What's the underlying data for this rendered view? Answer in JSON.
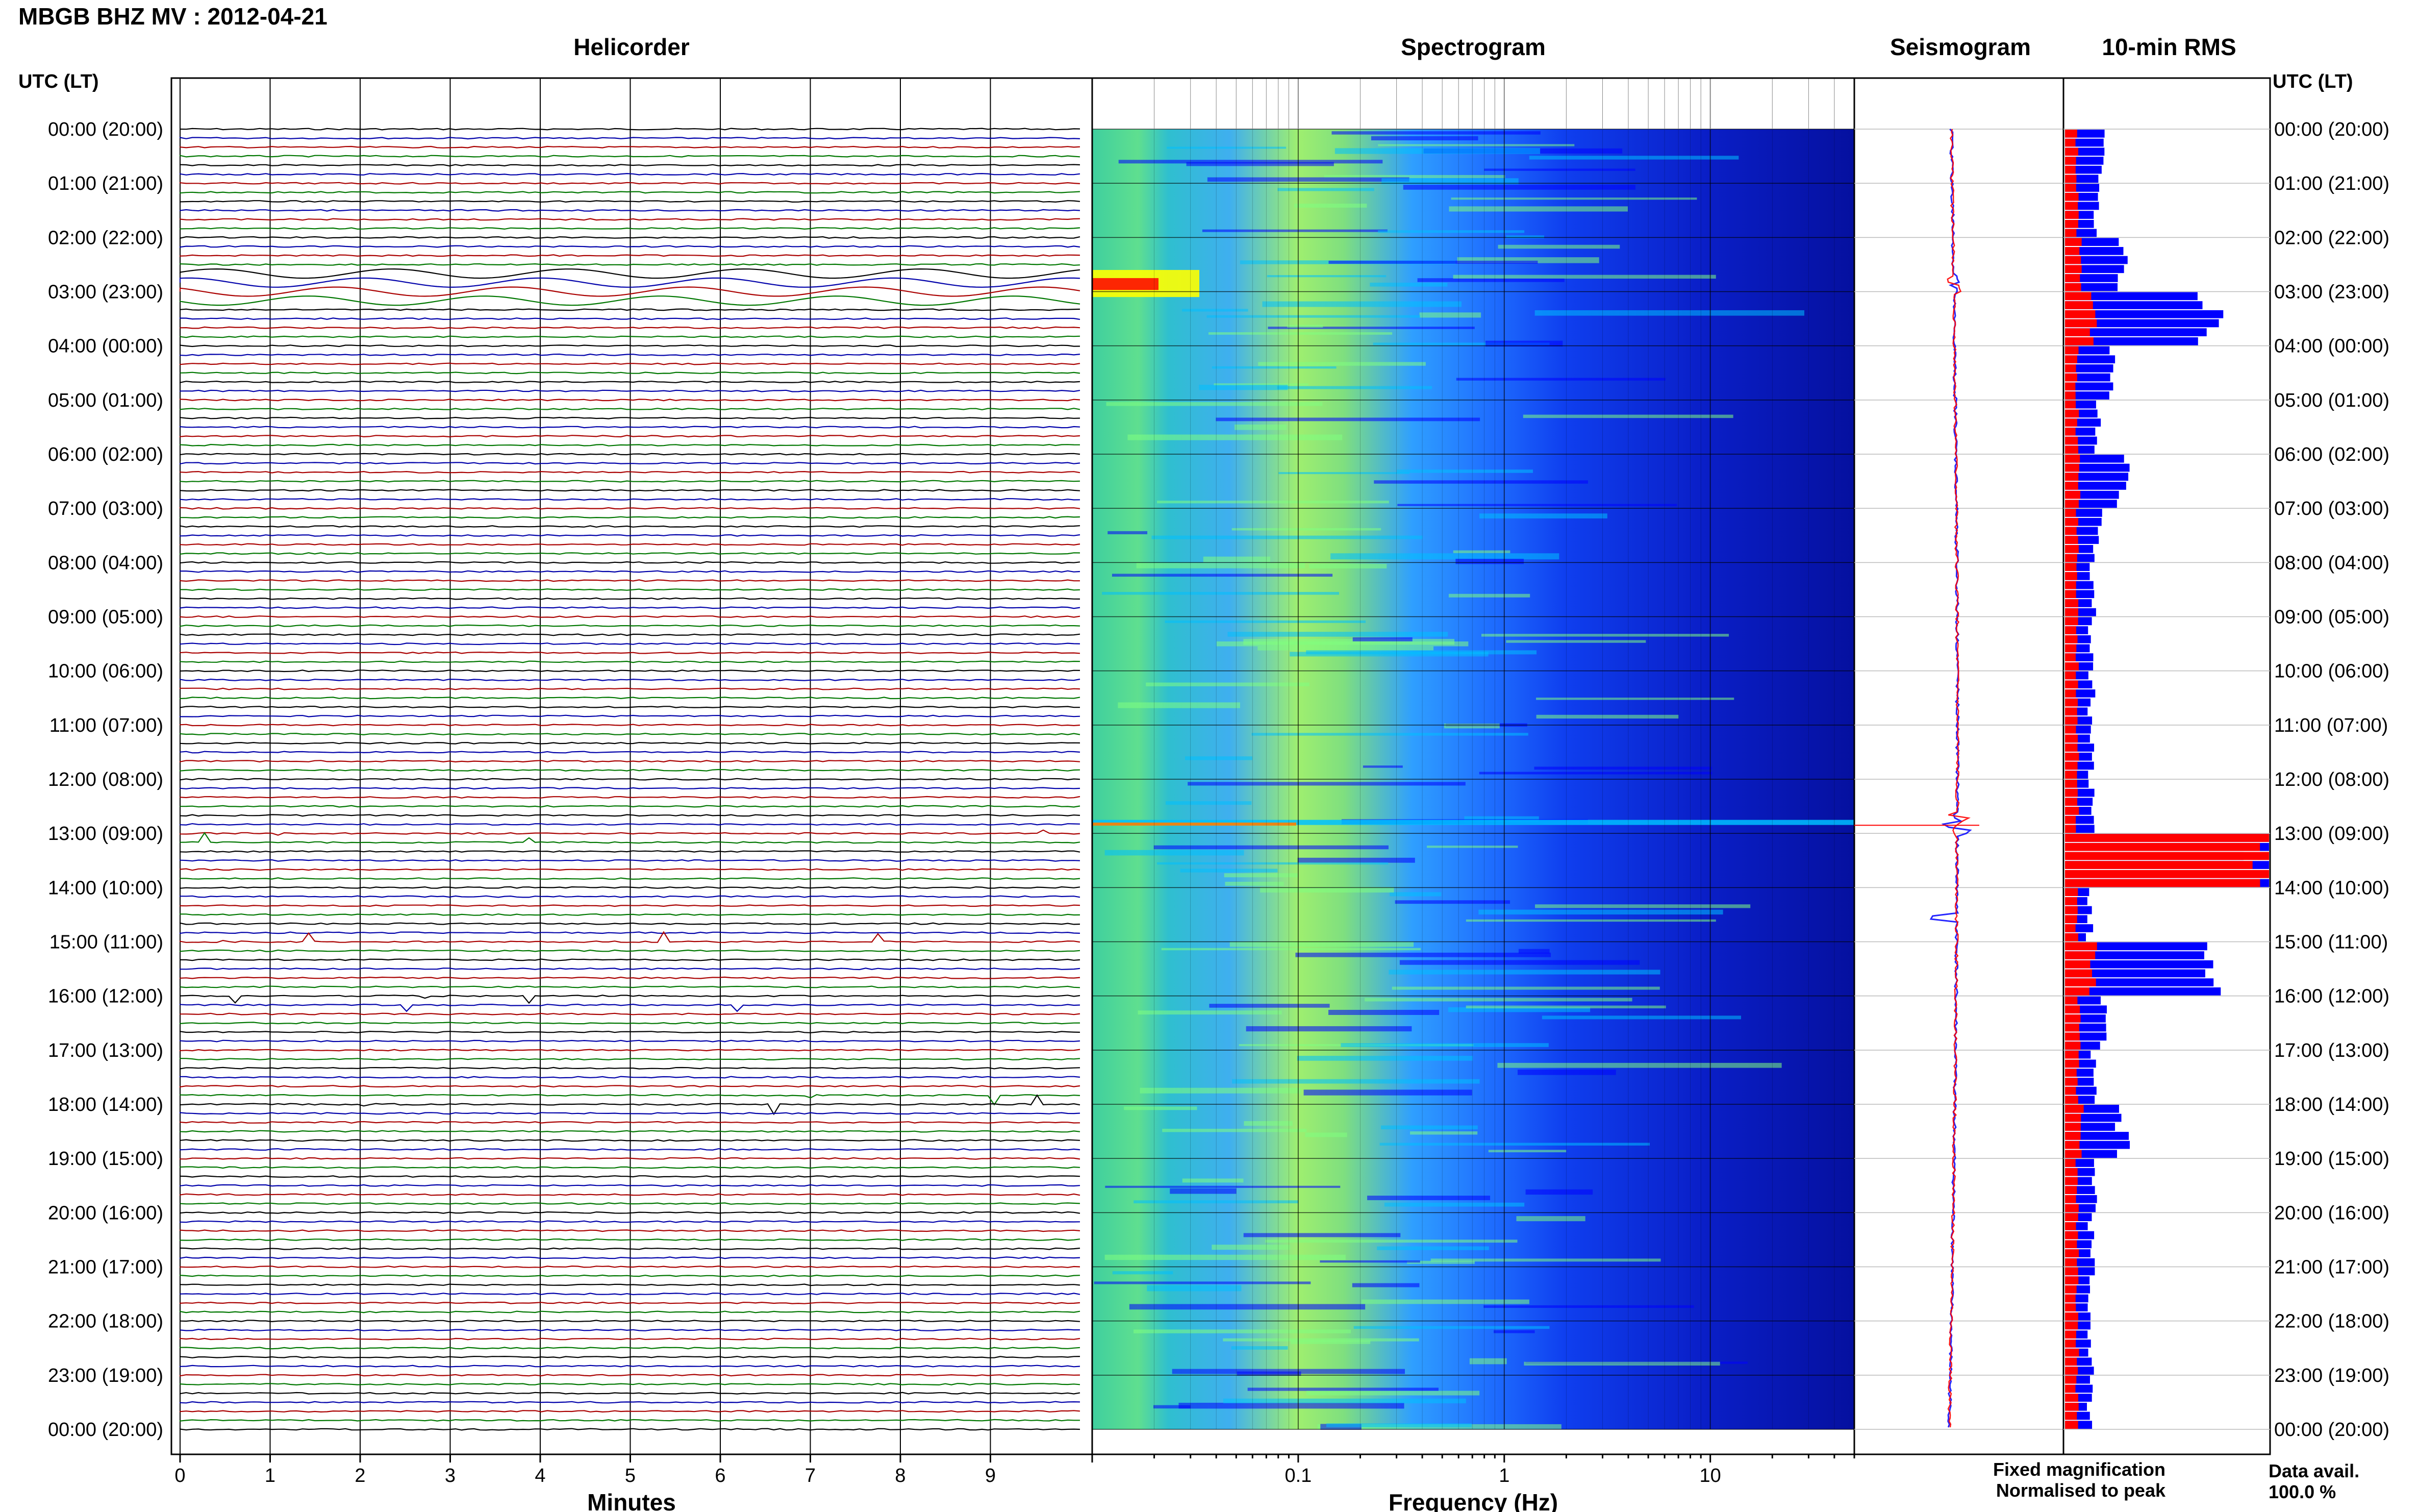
{
  "header": {
    "station_title": "MBGB BHZ MV : 2012-04-21",
    "utc_lt_label": "UTC (LT)"
  },
  "panels": {
    "helicorder_title": "Helicorder",
    "spectrogram_title": "Spectrogram",
    "seismogram_title": "Seismogram",
    "rms_title": "10-min RMS"
  },
  "axes": {
    "helicorder_xlabel": "Minutes",
    "spectrogram_xlabel": "Frequency (Hz)"
  },
  "time_labels": [
    "00:00 (20:00)",
    "01:00 (21:00)",
    "02:00 (22:00)",
    "03:00 (23:00)",
    "04:00 (00:00)",
    "05:00 (01:00)",
    "06:00 (02:00)",
    "07:00 (03:00)",
    "08:00 (04:00)",
    "09:00 (05:00)",
    "10:00 (06:00)",
    "11:00 (07:00)",
    "12:00 (08:00)",
    "13:00 (09:00)",
    "14:00 (10:00)",
    "15:00 (11:00)",
    "16:00 (12:00)",
    "17:00 (13:00)",
    "18:00 (14:00)",
    "19:00 (15:00)",
    "20:00 (16:00)",
    "21:00 (17:00)",
    "22:00 (18:00)",
    "23:00 (19:00)",
    "00:00 (20:00)"
  ],
  "legend": {
    "fixed_label": "Fixed magnification",
    "normalised_label": "Normalised to peak",
    "fixed_color": "#0000ff",
    "normalised_color": "#ff0000"
  },
  "data_availability": {
    "label": "Data avail.",
    "value": "100.0 %"
  },
  "chart_data": [
    {
      "panel": "helicorder",
      "type": "line",
      "title": "Helicorder",
      "xlabel": "Minutes",
      "xlim": [
        0,
        10
      ],
      "x_ticks": [
        "0",
        "1",
        "2",
        "3",
        "4",
        "5",
        "6",
        "7",
        "8",
        "9"
      ],
      "rows_per_hour": 6,
      "row_colors": [
        "#000000",
        "#0000aa",
        "#aa0000",
        "#007700"
      ],
      "events": [
        {
          "time_utc": "02:50",
          "description": "long-period oscillation"
        },
        {
          "time_utc": "12:55",
          "description": "large transients at ~1, 5 and 9.5 min"
        },
        {
          "time_utc": "15:00",
          "description": "signal at ~3 min"
        },
        {
          "time_utc": "16:00",
          "description": "emergent signal at ~3 min"
        },
        {
          "time_utc": "17:50",
          "description": "signal at ~8.5 min"
        }
      ]
    },
    {
      "panel": "spectrogram",
      "type": "heatmap",
      "title": "Spectrogram",
      "xlabel": "Frequency (Hz)",
      "x_scale": "log",
      "xlim": [
        0.01,
        50
      ],
      "x_ticks": [
        "0.1",
        "1",
        "10"
      ],
      "colormap": [
        "#00007f",
        "#0000ff",
        "#00bfff",
        "#7fff7f",
        "#ffff00",
        "#ff7f00",
        "#ff0000"
      ]
    },
    {
      "panel": "seismogram",
      "type": "line",
      "title": "Seismogram",
      "series": [
        {
          "name": "Fixed magnification",
          "color": "#0000ff"
        },
        {
          "name": "Normalised to peak",
          "color": "#ff0000"
        }
      ]
    },
    {
      "panel": "rms",
      "type": "bar",
      "title": "10-min RMS",
      "orientation": "horizontal",
      "time_labels_utc": [
        "00:00",
        "01:00",
        "02:00",
        "03:00",
        "04:00",
        "05:00",
        "06:00",
        "07:00",
        "08:00",
        "09:00",
        "10:00",
        "11:00",
        "12:00",
        "13:00",
        "14:00",
        "15:00",
        "16:00",
        "17:00",
        "18:00",
        "19:00",
        "20:00",
        "21:00",
        "22:00",
        "23:00"
      ],
      "series": [
        {
          "name": "Fixed magnification",
          "color": "#0000ff",
          "hourly_values": [
            0.18,
            0.16,
            0.28,
            0.68,
            0.22,
            0.16,
            0.28,
            0.16,
            0.14,
            0.13,
            0.13,
            0.13,
            0.13,
            1.0,
            0.12,
            0.72,
            0.18,
            0.14,
            0.28,
            0.14,
            0.13,
            0.13,
            0.13,
            0.12
          ]
        },
        {
          "name": "Normalised to peak",
          "color": "#ff0000",
          "hourly_values": [
            0.06,
            0.06,
            0.08,
            0.14,
            0.06,
            0.06,
            0.07,
            0.06,
            0.06,
            0.06,
            0.06,
            0.06,
            0.06,
            1.0,
            0.06,
            0.14,
            0.07,
            0.06,
            0.08,
            0.06,
            0.06,
            0.06,
            0.06,
            0.06
          ]
        }
      ]
    }
  ]
}
